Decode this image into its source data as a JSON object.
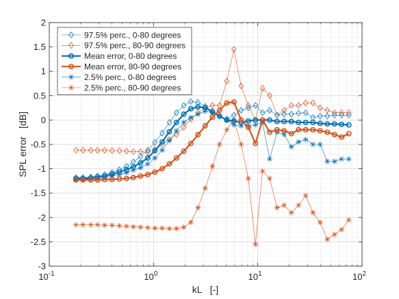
{
  "chart_data": {
    "type": "line",
    "title": "",
    "xlabel": "kL   [-]",
    "ylabel": "SPL error   [dB]",
    "x_scale": "log",
    "xlim": [
      0.1,
      100
    ],
    "ylim": [
      -3,
      2
    ],
    "x_ticks": [
      {
        "value": 0.1,
        "base": "10",
        "exp": "-1"
      },
      {
        "value": 1,
        "base": "10",
        "exp": "0"
      },
      {
        "value": 10,
        "base": "10",
        "exp": "1"
      },
      {
        "value": 100,
        "base": "10",
        "exp": "2"
      }
    ],
    "y_ticks": [
      -3,
      -2.5,
      -2,
      -1.5,
      -1,
      -0.5,
      0,
      0.5,
      1,
      1.5,
      2
    ],
    "y_tick_labels": [
      "-3",
      "-2.5",
      "-2",
      "-1.5",
      "-1",
      "-0.5",
      "0",
      "0.5",
      "1",
      "1.5",
      "2"
    ],
    "grid": true,
    "minor_grid": true,
    "legend_position": "top-left",
    "x": [
      0.18,
      0.21,
      0.25,
      0.29,
      0.34,
      0.4,
      0.47,
      0.55,
      0.64,
      0.75,
      0.88,
      1.03,
      1.21,
      1.42,
      1.66,
      1.95,
      2.28,
      2.67,
      3.13,
      3.67,
      4.3,
      5.04,
      5.9,
      6.92,
      8.11,
      9.5,
      11.1,
      13.0,
      15.3,
      17.9,
      21.0,
      24.6,
      28.8,
      33.8,
      39.6,
      46.4,
      54.4,
      63.7,
      74.7
    ],
    "series": [
      {
        "name": "97.5% perc., 0-80 degrees",
        "color": "#0072BD",
        "marker": "diamond",
        "line_width": 0.6,
        "values": [
          -1.18,
          -1.18,
          -1.17,
          -1.15,
          -1.12,
          -1.08,
          -1.02,
          -0.95,
          -0.86,
          -0.75,
          -0.62,
          -0.46,
          -0.27,
          -0.05,
          0.15,
          0.3,
          0.38,
          0.36,
          0.28,
          0.18,
          0.08,
          0.02,
          0.1,
          0.2,
          0.25,
          0.3,
          0.15,
          0.2,
          0.1,
          0.12,
          0.12,
          0.14,
          0.15,
          0.05,
          0.08,
          0.08,
          0.1,
          0.1,
          0.1
        ]
      },
      {
        "name": "97.5% perc., 80-90 degrees",
        "color": "#D95319",
        "marker": "diamond",
        "line_width": 0.6,
        "values": [
          -0.62,
          -0.62,
          -0.62,
          -0.62,
          -0.62,
          -0.63,
          -0.63,
          -0.64,
          -0.65,
          -0.65,
          -0.66,
          -0.6,
          -0.5,
          -0.4,
          -0.3,
          -0.15,
          0.02,
          0.15,
          0.25,
          0.3,
          0.3,
          0.8,
          1.45,
          0.7,
          0.3,
          0.0,
          0.65,
          0.5,
          0.1,
          0.2,
          0.3,
          0.3,
          0.35,
          0.35,
          0.25,
          0.2,
          0.15,
          0.15,
          0.15
        ]
      },
      {
        "name": "Mean error, 0-80 degrees",
        "color": "#0072BD",
        "marker": "circle",
        "line_width": 2.2,
        "values": [
          -1.2,
          -1.2,
          -1.19,
          -1.17,
          -1.15,
          -1.11,
          -1.07,
          -1.02,
          -0.96,
          -0.88,
          -0.78,
          -0.63,
          -0.45,
          -0.24,
          -0.05,
          0.12,
          0.23,
          0.27,
          0.25,
          0.17,
          0.08,
          0.0,
          -0.02,
          -0.05,
          -0.02,
          0.0,
          0.0,
          0.0,
          -0.03,
          -0.03,
          -0.03,
          -0.05,
          -0.05,
          -0.05,
          -0.07,
          -0.08,
          -0.08,
          -0.09,
          -0.1
        ]
      },
      {
        "name": "Mean error, 80-90 degrees",
        "color": "#D95319",
        "marker": "circle",
        "line_width": 2.2,
        "values": [
          -1.23,
          -1.23,
          -1.23,
          -1.23,
          -1.22,
          -1.22,
          -1.21,
          -1.2,
          -1.18,
          -1.15,
          -1.12,
          -1.07,
          -1.0,
          -0.9,
          -0.78,
          -0.64,
          -0.48,
          -0.3,
          -0.12,
          0.06,
          0.2,
          0.35,
          0.37,
          0.0,
          -0.15,
          -0.48,
          0.0,
          -0.25,
          -0.2,
          -0.22,
          -0.28,
          -0.2,
          -0.2,
          -0.2,
          -0.22,
          -0.25,
          -0.3,
          -0.35,
          -0.28
        ]
      },
      {
        "name": "2.5% perc., 0-80 degrees",
        "color": "#0072BD",
        "marker": "asterisk",
        "line_width": 0.6,
        "values": [
          -1.22,
          -1.22,
          -1.21,
          -1.2,
          -1.18,
          -1.15,
          -1.12,
          -1.08,
          -1.03,
          -0.98,
          -0.9,
          -0.78,
          -0.62,
          -0.42,
          -0.22,
          -0.05,
          0.05,
          0.12,
          0.18,
          0.16,
          0.08,
          0.0,
          -0.1,
          -0.12,
          -0.12,
          -0.1,
          -0.05,
          -0.8,
          -0.25,
          -0.3,
          -0.55,
          -0.45,
          -0.4,
          -0.5,
          -0.5,
          -0.85,
          -0.85,
          -0.8,
          -0.8
        ]
      },
      {
        "name": "2.5% perc., 80-90 degrees",
        "color": "#D95319",
        "marker": "asterisk",
        "line_width": 0.6,
        "values": [
          -2.15,
          -2.15,
          -2.15,
          -2.15,
          -2.16,
          -2.16,
          -2.17,
          -2.18,
          -2.19,
          -2.2,
          -2.21,
          -2.22,
          -2.22,
          -2.23,
          -2.23,
          -2.2,
          -2.1,
          -1.8,
          -1.4,
          -0.95,
          -0.5,
          -0.2,
          0.0,
          -0.5,
          -1.2,
          -2.55,
          -1.05,
          -1.2,
          -1.8,
          -1.75,
          -1.9,
          -1.75,
          -1.55,
          -1.9,
          -2.1,
          -2.45,
          -2.35,
          -2.25,
          -2.05
        ]
      }
    ]
  }
}
